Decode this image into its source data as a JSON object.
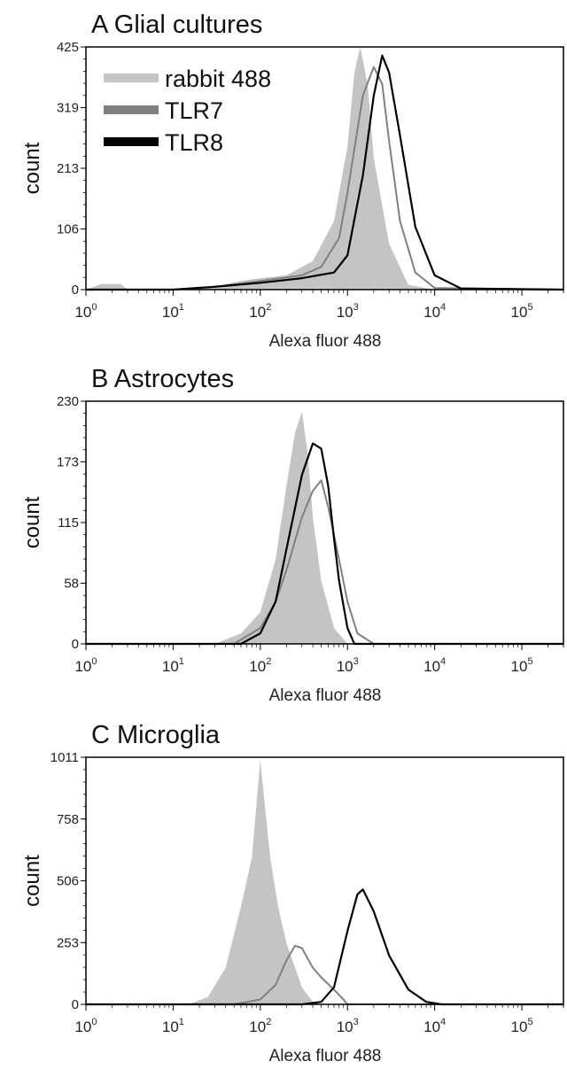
{
  "legend": [
    {
      "label": "rabbit 488",
      "color": "#c4c4c4"
    },
    {
      "label": "TLR7",
      "color": "#808080"
    },
    {
      "label": "TLR8",
      "color": "#000000"
    }
  ],
  "chart_data": [
    {
      "type": "area",
      "title": "A  Glial cultures",
      "xlabel": "Alexa fluor 488",
      "ylabel": "count",
      "xscale": "log",
      "xlim": [
        1,
        300000
      ],
      "ylim": [
        0,
        425
      ],
      "yticks": [
        "0",
        "106",
        "213",
        "319",
        "425"
      ],
      "xticks": [
        {
          "base": "10",
          "exp": "0"
        },
        {
          "base": "10",
          "exp": "1"
        },
        {
          "base": "10",
          "exp": "2"
        },
        {
          "base": "10",
          "exp": "3"
        },
        {
          "base": "10",
          "exp": "4"
        },
        {
          "base": "10",
          "exp": "5"
        }
      ],
      "series": [
        {
          "name": "rabbit 488",
          "style": "filled",
          "x": [
            1,
            1.5,
            2.5,
            3,
            10,
            30,
            60,
            100,
            200,
            400,
            700,
            1000,
            1200,
            1400,
            1700,
            2000,
            3000,
            5000,
            10000,
            300000
          ],
          "y": [
            0,
            10,
            10,
            0,
            0,
            5,
            15,
            20,
            25,
            50,
            120,
            250,
            380,
            425,
            360,
            230,
            80,
            8,
            0,
            0
          ]
        },
        {
          "name": "TLR7",
          "style": "line",
          "x": [
            1,
            10,
            30,
            100,
            300,
            500,
            800,
            1000,
            1500,
            2000,
            2500,
            3000,
            4000,
            6000,
            10000,
            300000
          ],
          "y": [
            0,
            0,
            5,
            15,
            25,
            40,
            90,
            170,
            340,
            390,
            360,
            260,
            120,
            30,
            3,
            0
          ]
        },
        {
          "name": "TLR8",
          "style": "line",
          "x": [
            1,
            10,
            30,
            100,
            300,
            700,
            1000,
            1500,
            2000,
            2500,
            3000,
            4000,
            6000,
            10000,
            20000,
            300000
          ],
          "y": [
            0,
            0,
            5,
            12,
            20,
            30,
            60,
            200,
            340,
            410,
            380,
            270,
            110,
            25,
            2,
            0
          ]
        }
      ]
    },
    {
      "type": "area",
      "title": "B  Astrocytes",
      "xlabel": "Alexa fluor 488",
      "ylabel": "count",
      "xscale": "log",
      "xlim": [
        1,
        300000
      ],
      "ylim": [
        0,
        230
      ],
      "yticks": [
        "0",
        "58",
        "115",
        "173",
        "230"
      ],
      "xticks": [
        {
          "base": "10",
          "exp": "0"
        },
        {
          "base": "10",
          "exp": "1"
        },
        {
          "base": "10",
          "exp": "2"
        },
        {
          "base": "10",
          "exp": "3"
        },
        {
          "base": "10",
          "exp": "4"
        },
        {
          "base": "10",
          "exp": "5"
        }
      ],
      "series": [
        {
          "name": "rabbit 488",
          "style": "filled",
          "x": [
            1,
            30,
            60,
            100,
            150,
            200,
            250,
            300,
            350,
            400,
            500,
            700,
            1000,
            300000
          ],
          "y": [
            0,
            0,
            10,
            30,
            80,
            150,
            200,
            220,
            180,
            120,
            60,
            15,
            0,
            0
          ]
        },
        {
          "name": "TLR7",
          "style": "line",
          "x": [
            1,
            50,
            100,
            150,
            200,
            300,
            400,
            500,
            600,
            800,
            1000,
            1300,
            2000,
            300000
          ],
          "y": [
            0,
            0,
            15,
            40,
            70,
            120,
            145,
            155,
            130,
            80,
            40,
            10,
            0,
            0
          ]
        },
        {
          "name": "TLR8",
          "style": "line",
          "x": [
            1,
            60,
            100,
            150,
            200,
            300,
            400,
            500,
            600,
            700,
            800,
            1000,
            1200,
            300000
          ],
          "y": [
            0,
            0,
            10,
            40,
            90,
            160,
            190,
            185,
            150,
            100,
            60,
            15,
            0,
            0
          ]
        }
      ]
    },
    {
      "type": "area",
      "title": "C Microglia",
      "xlabel": "Alexa fluor 488",
      "ylabel": "count",
      "xscale": "log",
      "xlim": [
        1,
        300000
      ],
      "ylim": [
        0,
        1011
      ],
      "yticks": [
        "0",
        "253",
        "506",
        "758",
        "1011"
      ],
      "xticks": [
        {
          "base": "10",
          "exp": "0"
        },
        {
          "base": "10",
          "exp": "1"
        },
        {
          "base": "10",
          "exp": "2"
        },
        {
          "base": "10",
          "exp": "3"
        },
        {
          "base": "10",
          "exp": "4"
        },
        {
          "base": "10",
          "exp": "5"
        }
      ],
      "series": [
        {
          "name": "rabbit 488",
          "style": "filled",
          "x": [
            1,
            15,
            25,
            40,
            60,
            80,
            100,
            130,
            160,
            200,
            300,
            400,
            500,
            300000
          ],
          "y": [
            0,
            0,
            30,
            150,
            400,
            600,
            1000,
            600,
            400,
            250,
            70,
            10,
            0,
            0
          ]
        },
        {
          "name": "TLR7",
          "style": "line",
          "x": [
            1,
            50,
            100,
            150,
            200,
            250,
            300,
            400,
            500,
            700,
            900,
            1000,
            300000
          ],
          "y": [
            0,
            0,
            20,
            80,
            180,
            240,
            230,
            150,
            110,
            60,
            20,
            0,
            0
          ]
        },
        {
          "name": "TLR8",
          "style": "line",
          "x": [
            1,
            300,
            500,
            700,
            1000,
            1300,
            1500,
            2000,
            3000,
            5000,
            8000,
            12000,
            300000
          ],
          "y": [
            0,
            0,
            10,
            70,
            300,
            450,
            470,
            380,
            200,
            60,
            10,
            0,
            0
          ]
        }
      ]
    }
  ]
}
